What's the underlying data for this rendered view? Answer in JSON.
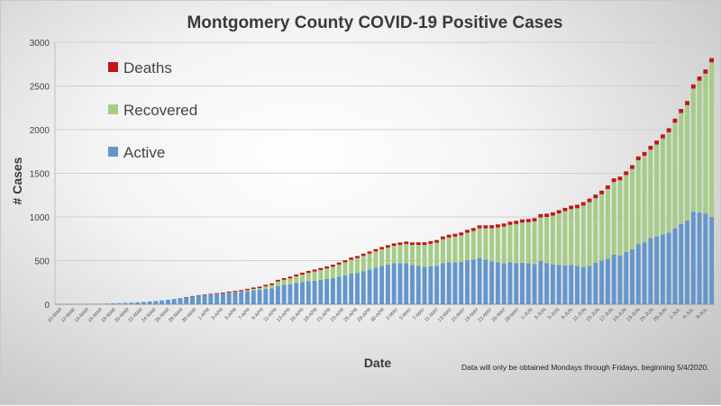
{
  "chart_data": {
    "type": "bar",
    "stacked": true,
    "title": "Montgomery County COVID-19 Positive Cases",
    "xlabel": "Date",
    "ylabel": "# Cases",
    "ylim": [
      0,
      3000
    ],
    "yticks": [
      0,
      500,
      1000,
      1500,
      2000,
      2500,
      3000
    ],
    "grid": true,
    "legend": "upper-left",
    "footnote": "Data will only be obtained Mondays through Fridays, beginning 5/4/2020.",
    "tick_labels": [
      "10-MAR",
      "12-MAR",
      "14-MAR",
      "16-MAR",
      "18-MAR",
      "20-MAR",
      "22-MAR",
      "24-MAR",
      "26-MAR",
      "28-MAR",
      "30-MAR",
      "1-APR",
      "3-APR",
      "5-APR",
      "7-APR",
      "9-APR",
      "11-APR",
      "13-APR",
      "16-APR",
      "18-APR",
      "21-APR",
      "23-APR",
      "25-APR",
      "28-APR",
      "30-APR",
      "2-MAY",
      "5-MAY",
      "7-MAY",
      "11-MAY",
      "13-MAY",
      "15-MAY",
      "19-MAY",
      "21-MAY",
      "26-MAY",
      "28-MAY",
      "1-JUN",
      "3-JUN",
      "5-JUN",
      "9-JUN",
      "11-JUN",
      "15-JUN",
      "17-JUN",
      "19-JUN",
      "23-JUN",
      "25-JUN",
      "29-JUN",
      "1-JUL",
      "6-JUL",
      "8-JUL"
    ],
    "colors": {
      "Active": "#6496cc",
      "Recovered": "#a6cc88",
      "Deaths": "#c0161b"
    },
    "series": [
      {
        "name": "Active",
        "values": [
          1,
          2,
          2,
          3,
          4,
          5,
          6,
          7,
          9,
          11,
          13,
          15,
          18,
          22,
          26,
          31,
          37,
          44,
          52,
          60,
          70,
          80,
          92,
          100,
          108,
          115,
          120,
          125,
          130,
          135,
          140,
          150,
          160,
          165,
          175,
          180,
          210,
          222,
          230,
          245,
          255,
          265,
          270,
          280,
          290,
          300,
          315,
          330,
          350,
          360,
          380,
          400,
          420,
          440,
          455,
          470,
          470,
          470,
          450,
          440,
          430,
          435,
          440,
          470,
          480,
          480,
          485,
          500,
          510,
          530,
          510,
          490,
          480,
          470,
          480,
          470,
          475,
          470,
          460,
          495,
          470,
          455,
          450,
          445,
          450,
          440,
          430,
          440,
          475,
          500,
          520,
          570,
          560,
          600,
          630,
          690,
          710,
          760,
          780,
          800,
          820,
          870,
          920,
          960,
          1060,
          1050,
          1040,
          1000
        ]
      },
      {
        "name": "Recovered",
        "values": [
          0,
          0,
          0,
          0,
          0,
          0,
          0,
          0,
          0,
          0,
          0,
          0,
          0,
          0,
          0,
          0,
          0,
          0,
          0,
          0,
          0,
          0,
          0,
          0,
          0,
          0,
          0,
          0,
          3,
          5,
          8,
          12,
          16,
          20,
          30,
          40,
          50,
          58,
          66,
          75,
          85,
          95,
          105,
          112,
          120,
          130,
          140,
          150,
          160,
          168,
          175,
          180,
          185,
          190,
          195,
          200,
          210,
          220,
          230,
          240,
          250,
          258,
          265,
          275,
          285,
          295,
          305,
          320,
          330,
          340,
          360,
          380,
          400,
          420,
          430,
          450,
          460,
          470,
          490,
          500,
          530,
          560,
          590,
          620,
          640,
          660,
          700,
          730,
          740,
          760,
          800,
          830,
          860,
          880,
          920,
          960,
          990,
          1010,
          1050,
          1100,
          1150,
          1210,
          1270,
          1320,
          1410,
          1510,
          1600,
          1770
        ]
      },
      {
        "name": "Deaths",
        "values": [
          0,
          0,
          0,
          0,
          0,
          0,
          0,
          0,
          0,
          0,
          0,
          0,
          0,
          0,
          0,
          0,
          0,
          0,
          0,
          0,
          0,
          1,
          2,
          4,
          5,
          6,
          8,
          10,
          12,
          13,
          14,
          15,
          16,
          17,
          18,
          19,
          20,
          20,
          21,
          21,
          22,
          22,
          23,
          23,
          23,
          24,
          24,
          24,
          25,
          25,
          25,
          25,
          26,
          26,
          27,
          27,
          28,
          28,
          28,
          29,
          30,
          30,
          31,
          31,
          32,
          32,
          32,
          33,
          33,
          34,
          34,
          35,
          35,
          35,
          36,
          36,
          37,
          37,
          37,
          38,
          38,
          38,
          38,
          39,
          39,
          40,
          40,
          40,
          41,
          41,
          41,
          42,
          42,
          42,
          43,
          43,
          44,
          44,
          45,
          45,
          46,
          46,
          47,
          47,
          48,
          48,
          49,
          49
        ]
      }
    ]
  }
}
